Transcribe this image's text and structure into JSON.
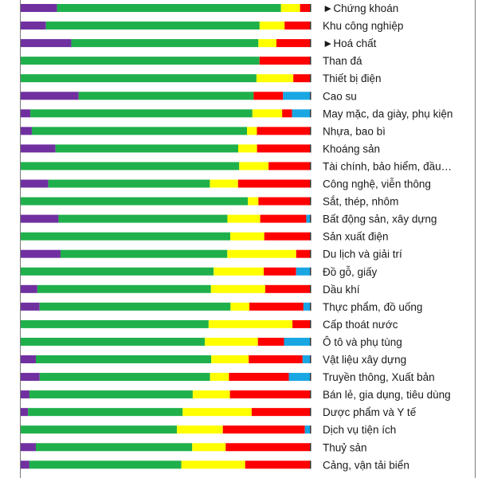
{
  "chart_data": {
    "type": "bar",
    "stacked": "100%",
    "orientation": "horizontal",
    "colors": {
      "purple": "#7030a0",
      "green": "#1fb04b",
      "yellow": "#ffff00",
      "red": "#ff0000",
      "blue": "#19a7e4"
    },
    "categories": [
      "►Chứng khoán",
      "Khu công nghiệp",
      "►Hoá chất",
      "Than đá",
      "Thiết bị điện",
      "Cao su",
      "May mặc, da giày, phụ kiện",
      "Nhựa, bao bì",
      "Khoáng sản",
      "Tài chính, bảo hiểm, đầu…",
      "Công nghệ, viễn thông",
      "Sắt, thép, nhôm",
      "Bất động sản, xây dựng",
      "Sản xuất điện",
      "Du lịch và giải trí",
      "Đồ gỗ, giấy",
      "Dầu khí",
      "Thực phẩm, đồ uống",
      "Cấp thoát nước",
      "Ô tô và phụ tùng",
      "Vật liệu xây dựng",
      "Truyền thông, Xuất bản",
      "Bán lẻ, gia dụng, tiêu dùng",
      "Dược phẩm và Y tế",
      "Dịch vụ tiện ích",
      "Thuỷ sản",
      "Cảng, vận tải biển"
    ],
    "series": [
      {
        "color": "purple",
        "values": [
          11.2,
          8.7,
          17.4,
          0,
          0,
          19.9,
          3.3,
          3.8,
          12.0,
          0,
          9.5,
          0,
          12.8,
          0,
          14.8,
          0,
          5.7,
          6.5,
          0,
          0,
          5.2,
          6.5,
          3.0,
          2.5,
          0,
          5.2,
          3.0
        ]
      },
      {
        "color": "green",
        "values": [
          69.3,
          73.6,
          64.4,
          81.7,
          81.3,
          60.1,
          76.2,
          73.6,
          63.0,
          75.2,
          55.6,
          78.2,
          57.2,
          72.2,
          62.0,
          66.2,
          59.5,
          65.7,
          64.8,
          63.5,
          60.3,
          58.4,
          56.2,
          52.9,
          53.7,
          53.7,
          52.4
        ]
      },
      {
        "color": "yellow",
        "values": [
          5.9,
          8.6,
          6.2,
          0,
          12.7,
          0,
          10.2,
          3.4,
          6.5,
          10.1,
          9.7,
          3.6,
          11.1,
          11.7,
          25.6,
          17.2,
          18.6,
          6.5,
          28.9,
          18.3,
          12.9,
          6.5,
          12.8,
          23.6,
          15.8,
          11.5,
          22.0
        ]
      },
      {
        "color": "red",
        "values": [
          3.3,
          9.0,
          11.8,
          17.5,
          6.0,
          10.1,
          3.4,
          18.4,
          18.5,
          14.5,
          25.0,
          18.0,
          15.6,
          16.0,
          5.4,
          11.1,
          15.6,
          18.6,
          6.3,
          9.0,
          18.5,
          20.5,
          27.8,
          20.2,
          28.2,
          29.2,
          22.6
        ]
      },
      {
        "color": "blue",
        "values": [
          0,
          0,
          0,
          0,
          0,
          9.5,
          6.4,
          0,
          0,
          0,
          0,
          0,
          1.5,
          0,
          0,
          5.0,
          0,
          2.5,
          0,
          9.2,
          2.8,
          7.5,
          0,
          0,
          2.0,
          0,
          0
        ]
      }
    ],
    "legend": "none",
    "grid": false,
    "xlim": [
      0,
      100
    ]
  }
}
